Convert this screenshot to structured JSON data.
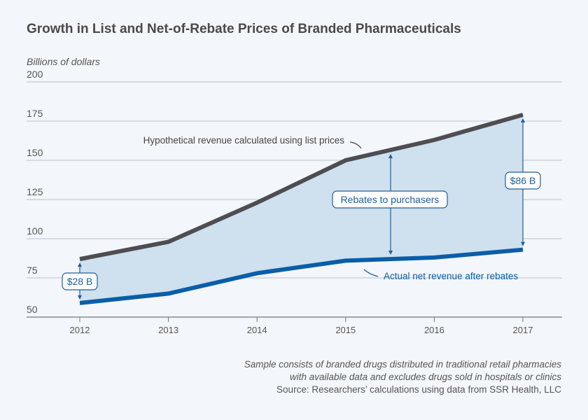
{
  "chart_data": {
    "type": "area",
    "title": "Growth in List and Net-of-Rebate Prices of Branded Pharmaceuticals",
    "ylabel": "Billions of dollars",
    "xlabel": "",
    "categories": [
      "2012",
      "2013",
      "2014",
      "2015",
      "2016",
      "2017"
    ],
    "ylim": [
      50,
      200
    ],
    "yticks": [
      50,
      75,
      100,
      125,
      150,
      175,
      200
    ],
    "grid": true,
    "series": [
      {
        "name": "Hypothetical revenue calculated using list prices",
        "values": [
          87,
          98,
          123,
          150,
          163,
          179
        ],
        "color": "#4d4d52"
      },
      {
        "name": "Actual net revenue after rebates",
        "values": [
          59,
          65,
          78,
          86,
          88,
          93
        ],
        "color": "#0a5ea8"
      }
    ],
    "fill_color": "#cfe0ee",
    "annotations": {
      "gap_2012": "$28 B",
      "gap_2017": "$86 B",
      "rebates": "Rebates to purchasers"
    },
    "notes": [
      "Sample consists of branded drugs distributed in traditional retail pharmacies",
      "with available data and excludes drugs sold in hospitals or clinics"
    ],
    "source": "Source: Researchers’ calculations using data from SSR Health, LLC"
  }
}
